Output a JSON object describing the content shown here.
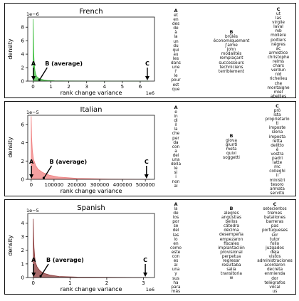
{
  "chart_data": [
    {
      "type": "area",
      "title": "French",
      "xlabel": "rank change variance",
      "ylabel": "density",
      "x_tick_labels": [
        "0",
        "1",
        "2",
        "3",
        "4",
        "5",
        "6"
      ],
      "x_offset_label": "1e6",
      "y_tick_labels": [
        "0",
        "2",
        "4",
        "6",
        "8"
      ],
      "y_offset_label": "1e−6",
      "xlim": [
        -0.3,
        6.8
      ],
      "ylim": [
        0,
        9.5
      ],
      "color": "#3fbf3f",
      "density_curve": {
        "x": [
          0,
          0.03,
          0.06,
          0.1,
          0.15,
          0.2,
          0.3,
          0.4,
          0.6,
          0.8,
          1.2,
          2,
          4,
          6.5
        ],
        "y": [
          9.2,
          4.5,
          2.6,
          1.6,
          1.0,
          0.7,
          0.45,
          0.3,
          0.18,
          0.1,
          0.05,
          0.02,
          0.005,
          0
        ]
      },
      "markers": [
        {
          "label": "A",
          "x": 0.02
        },
        {
          "label": "B (average)",
          "x": 0.35
        },
        {
          "label": "C",
          "x": 6.4
        }
      ],
      "word_columns": [
        {
          "label": "A",
          "words": [
            "et",
            "en",
            "des",
            "de",
            "à",
            "la",
            "un",
            "du",
            "qui",
            "au",
            "les",
            "dans",
            "une",
            "l'",
            "le",
            "pour",
            "est",
            "que"
          ]
        },
        {
          "label": "B",
          "words": [
            "brûlés",
            "économiquement",
            "j'aime",
            "john",
            "modalités",
            "remplaçant",
            "successeurs",
            "techniciens",
            "terriblement"
          ]
        },
        {
          "label": "C",
          "words": [
            "ut",
            "las",
            "virgile",
            "laval",
            "mb",
            "molière",
            "poitiers",
            "nègres",
            "ac",
            "armistice",
            "christophe",
            "reims",
            "chars",
            "verdun",
            "nid",
            "richelieu",
            "che",
            "montaigne",
            "miel",
            "abeilles"
          ]
        }
      ]
    },
    {
      "type": "area",
      "title": "Italian",
      "xlabel": "rank change variance",
      "ylabel": "density",
      "x_tick_labels": [
        "0",
        "100000",
        "200000",
        "300000",
        "400000",
        "500000"
      ],
      "y_tick_labels": [
        "0",
        "2",
        "4",
        "6"
      ],
      "y_offset_label": "1e−5",
      "xlim": [
        -15000,
        540000
      ],
      "ylim": [
        0,
        7
      ],
      "color": "#f08080",
      "density_curve": {
        "x": [
          0,
          2000,
          5000,
          10000,
          20000,
          30000,
          50000,
          80000,
          120000,
          200000,
          350000,
          520000
        ],
        "y": [
          6.9,
          4.6,
          3.2,
          2.2,
          1.5,
          1.1,
          0.75,
          0.45,
          0.25,
          0.1,
          0.03,
          0
        ]
      },
      "markers": [
        {
          "label": "A",
          "x": 1000
        },
        {
          "label": "B (average)",
          "x": 55000
        },
        {
          "label": "C",
          "x": 505000
        }
      ],
      "word_columns": [
        {
          "label": "A",
          "words": [
            "e",
            "in",
            "di",
            "il",
            "la",
            "che",
            "per",
            "da",
            "con",
            "a",
            "dei",
            "una",
            "della",
            "le",
            "si",
            "i",
            "non",
            "al"
          ]
        },
        {
          "label": "B",
          "words": [
            "giova",
            "giunti",
            "meta",
            "quivi",
            "soggetti"
          ]
        },
        {
          "label": "C",
          "words": [
            "prò",
            "ista",
            "proprietario",
            "ti",
            "imposte",
            "siena",
            "imposta",
            "retta",
            "delitto",
            "è",
            "vostra",
            "padri",
            "latte",
            "mc",
            "colleghi",
            "ii",
            "ministri",
            "tesoro",
            "armata",
            "servitù"
          ]
        }
      ]
    },
    {
      "type": "area",
      "title": "Spanish",
      "xlabel": "rank change variance",
      "ylabel": "density",
      "x_tick_labels": [
        "0",
        "1",
        "2",
        "3"
      ],
      "x_offset_label": "1e6",
      "y_tick_labels": [
        "0",
        "1",
        "2",
        "3",
        "4"
      ],
      "y_offset_label": "1e−5",
      "xlim": [
        -0.15,
        3.3
      ],
      "ylim": [
        0,
        4.7
      ],
      "color": "#8b3a3a",
      "density_curve": {
        "x": [
          0,
          0.01,
          0.02,
          0.04,
          0.06,
          0.1,
          0.15,
          0.2,
          0.3,
          0.45,
          0.7,
          1.2,
          3.1
        ],
        "y": [
          4.3,
          3.0,
          2.2,
          1.5,
          1.1,
          0.8,
          0.6,
          0.45,
          0.3,
          0.18,
          0.08,
          0.03,
          0
        ]
      },
      "markers": [
        {
          "label": "A",
          "x": 0.01
        },
        {
          "label": "B (average)",
          "x": 0.2
        },
        {
          "label": "C",
          "x": 3.05
        }
      ],
      "word_columns": [
        {
          "label": "A",
          "words": [
            "la",
            "de",
            "los",
            "por",
            "se",
            "del",
            "las",
            "lo",
            "en",
            "como",
            "este",
            "con",
            "es",
            "al",
            "una",
            "y",
            "sus",
            "ha",
            "para",
            "más"
          ]
        },
        {
          "label": "B",
          "words": [
            "alegres",
            "angustias",
            "bellos",
            "cátedra",
            "décima",
            "desempeña",
            "empezaron",
            "fiscales",
            "implantación",
            "provisional",
            "perpetua",
            "regresar",
            "resultaba",
            "salia",
            "transitoria",
            "w"
          ]
        },
        {
          "label": "C",
          "words": [
            "setecientos",
            "tremes",
            "batallones",
            "barreras",
            "pas",
            "portugueses",
            "sor",
            "tutor",
            "folio",
            "juzgados",
            "deja",
            "vistos",
            "administraciones",
            "acordaron",
            "decreta",
            "enmienda",
            "dor",
            "telégrafos",
            "vocal",
            "us"
          ]
        }
      ]
    }
  ]
}
